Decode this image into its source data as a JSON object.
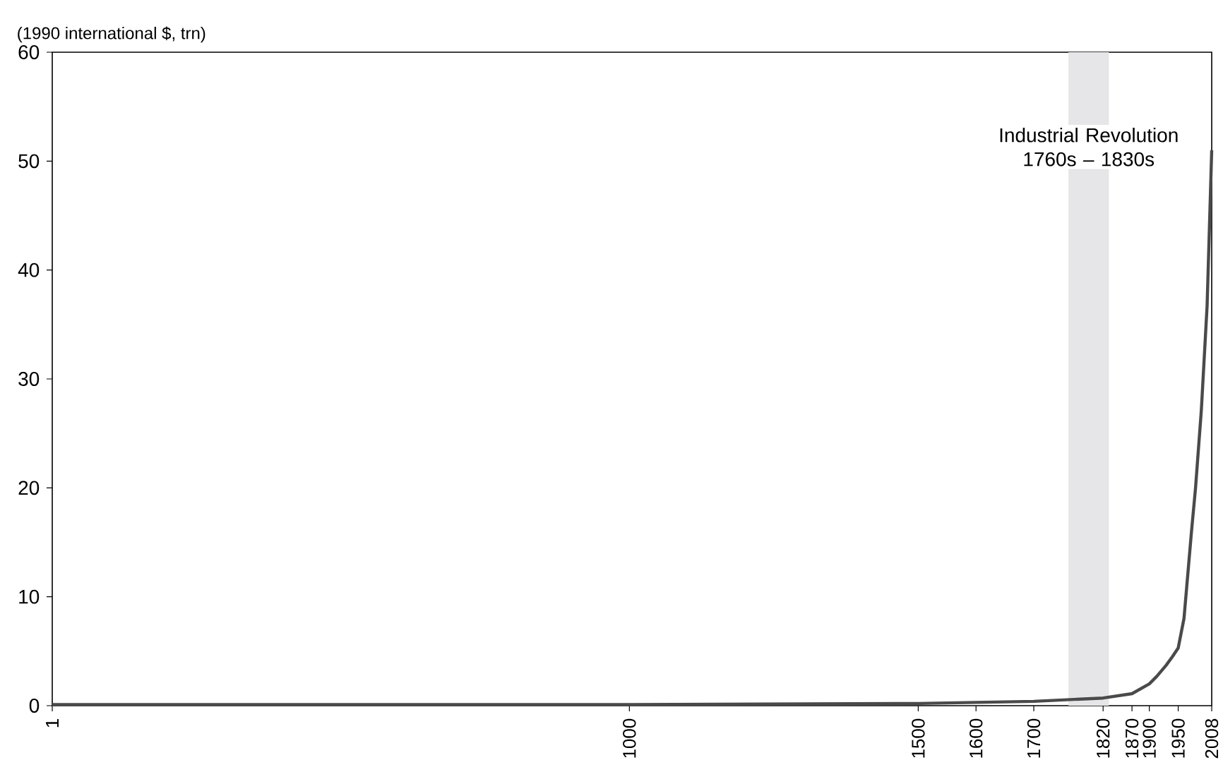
{
  "chart_data": {
    "type": "line",
    "ylabel": "(1990 international $, trn)",
    "x": [
      1,
      1000,
      1500,
      1600,
      1700,
      1820,
      1870,
      1900,
      1913,
      1929,
      1940,
      1950,
      1960,
      1973,
      1980,
      1990,
      2000,
      2008
    ],
    "series": [
      {
        "color": "#4a4a4a",
        "values": [
          0.1,
          0.1,
          0.2,
          0.3,
          0.4,
          0.7,
          1.1,
          2.0,
          2.7,
          3.7,
          4.5,
          5.3,
          8.0,
          16.0,
          20.0,
          27.1,
          36.7,
          51.0
        ]
      }
    ],
    "xlim": [
      1,
      2008
    ],
    "xticks": [
      1,
      1000,
      1500,
      1600,
      1700,
      1820,
      1870,
      1900,
      1950,
      2008
    ],
    "ylim": [
      0,
      60
    ],
    "yticks": [
      0,
      10,
      20,
      30,
      40,
      50,
      60
    ],
    "bands": [
      {
        "axis": "x",
        "from": 1760,
        "to": 1830,
        "label": "Industrial Revolution 1760s – 1830s",
        "color": "#e6e6e8"
      }
    ],
    "grid": false
  }
}
